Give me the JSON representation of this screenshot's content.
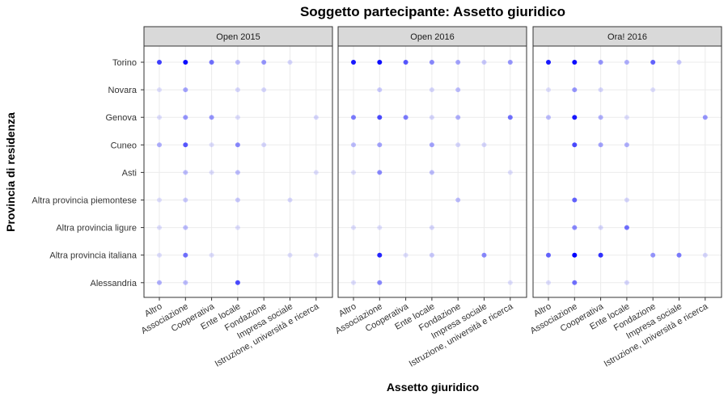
{
  "chart_data": {
    "type": "scatter",
    "title": "Soggetto partecipante: Assetto giuridico",
    "xlabel": "Assetto giuridico",
    "ylabel": "Provincia di residenza",
    "x_categories": [
      "Altro",
      "Associazione",
      "Cooperativa",
      "Ente locale",
      "Fondazione",
      "Impresa sociale",
      "Istruzione, università e ricerca"
    ],
    "y_categories": [
      "Torino",
      "Novara",
      "Genova",
      "Cuneo",
      "Asti",
      "Altra provincia piemontese",
      "Altra provincia ligure",
      "Altra provincia italiana",
      "Alessandria"
    ],
    "point_color": "#0000ff",
    "panels": [
      {
        "name": "Open 2015",
        "points": [
          {
            "x": "Altro",
            "y": "Torino",
            "alpha": 0.75
          },
          {
            "x": "Associazione",
            "y": "Torino",
            "alpha": 0.95
          },
          {
            "x": "Cooperativa",
            "y": "Torino",
            "alpha": 0.55
          },
          {
            "x": "Ente locale",
            "y": "Torino",
            "alpha": 0.25
          },
          {
            "x": "Fondazione",
            "y": "Torino",
            "alpha": 0.4
          },
          {
            "x": "Impresa sociale",
            "y": "Torino",
            "alpha": 0.15
          },
          {
            "x": "Altro",
            "y": "Novara",
            "alpha": 0.12
          },
          {
            "x": "Associazione",
            "y": "Novara",
            "alpha": 0.35
          },
          {
            "x": "Ente locale",
            "y": "Novara",
            "alpha": 0.15
          },
          {
            "x": "Fondazione",
            "y": "Novara",
            "alpha": 0.15
          },
          {
            "x": "Altro",
            "y": "Genova",
            "alpha": 0.12
          },
          {
            "x": "Associazione",
            "y": "Genova",
            "alpha": 0.4
          },
          {
            "x": "Cooperativa",
            "y": "Genova",
            "alpha": 0.4
          },
          {
            "x": "Ente locale",
            "y": "Genova",
            "alpha": 0.12
          },
          {
            "x": "Istruzione, università e ricerca",
            "y": "Genova",
            "alpha": 0.15
          },
          {
            "x": "Altro",
            "y": "Cuneo",
            "alpha": 0.3
          },
          {
            "x": "Associazione",
            "y": "Cuneo",
            "alpha": 0.65
          },
          {
            "x": "Cooperativa",
            "y": "Cuneo",
            "alpha": 0.12
          },
          {
            "x": "Ente locale",
            "y": "Cuneo",
            "alpha": 0.45
          },
          {
            "x": "Fondazione",
            "y": "Cuneo",
            "alpha": 0.15
          },
          {
            "x": "Associazione",
            "y": "Asti",
            "alpha": 0.25
          },
          {
            "x": "Cooperativa",
            "y": "Asti",
            "alpha": 0.12
          },
          {
            "x": "Ente locale",
            "y": "Asti",
            "alpha": 0.25
          },
          {
            "x": "Istruzione, università e ricerca",
            "y": "Asti",
            "alpha": 0.12
          },
          {
            "x": "Altro",
            "y": "Altra provincia piemontese",
            "alpha": 0.12
          },
          {
            "x": "Associazione",
            "y": "Altra provincia piemontese",
            "alpha": 0.2
          },
          {
            "x": "Ente locale",
            "y": "Altra provincia piemontese",
            "alpha": 0.2
          },
          {
            "x": "Impresa sociale",
            "y": "Altra provincia piemontese",
            "alpha": 0.15
          },
          {
            "x": "Altro",
            "y": "Altra provincia ligure",
            "alpha": 0.12
          },
          {
            "x": "Associazione",
            "y": "Altra provincia ligure",
            "alpha": 0.25
          },
          {
            "x": "Ente locale",
            "y": "Altra provincia ligure",
            "alpha": 0.12
          },
          {
            "x": "Altro",
            "y": "Altra provincia italiana",
            "alpha": 0.12
          },
          {
            "x": "Associazione",
            "y": "Altra provincia italiana",
            "alpha": 0.55
          },
          {
            "x": "Cooperativa",
            "y": "Altra provincia italiana",
            "alpha": 0.12
          },
          {
            "x": "Impresa sociale",
            "y": "Altra provincia italiana",
            "alpha": 0.12
          },
          {
            "x": "Istruzione, università e ricerca",
            "y": "Altra provincia italiana",
            "alpha": 0.12
          },
          {
            "x": "Altro",
            "y": "Alessandria",
            "alpha": 0.3
          },
          {
            "x": "Associazione",
            "y": "Alessandria",
            "alpha": 0.25
          },
          {
            "x": "Ente locale",
            "y": "Alessandria",
            "alpha": 0.7
          }
        ]
      },
      {
        "name": "Open 2016",
        "points": [
          {
            "x": "Altro",
            "y": "Torino",
            "alpha": 0.9
          },
          {
            "x": "Associazione",
            "y": "Torino",
            "alpha": 0.95
          },
          {
            "x": "Cooperativa",
            "y": "Torino",
            "alpha": 0.65
          },
          {
            "x": "Ente locale",
            "y": "Torino",
            "alpha": 0.45
          },
          {
            "x": "Fondazione",
            "y": "Torino",
            "alpha": 0.35
          },
          {
            "x": "Impresa sociale",
            "y": "Torino",
            "alpha": 0.2
          },
          {
            "x": "Istruzione, università e ricerca",
            "y": "Torino",
            "alpha": 0.4
          },
          {
            "x": "Associazione",
            "y": "Novara",
            "alpha": 0.2
          },
          {
            "x": "Ente locale",
            "y": "Novara",
            "alpha": 0.15
          },
          {
            "x": "Fondazione",
            "y": "Novara",
            "alpha": 0.25
          },
          {
            "x": "Altro",
            "y": "Genova",
            "alpha": 0.5
          },
          {
            "x": "Associazione",
            "y": "Genova",
            "alpha": 0.7
          },
          {
            "x": "Cooperativa",
            "y": "Genova",
            "alpha": 0.5
          },
          {
            "x": "Ente locale",
            "y": "Genova",
            "alpha": 0.15
          },
          {
            "x": "Fondazione",
            "y": "Genova",
            "alpha": 0.3
          },
          {
            "x": "Istruzione, università e ricerca",
            "y": "Genova",
            "alpha": 0.55
          },
          {
            "x": "Altro",
            "y": "Cuneo",
            "alpha": 0.25
          },
          {
            "x": "Associazione",
            "y": "Cuneo",
            "alpha": 0.35
          },
          {
            "x": "Ente locale",
            "y": "Cuneo",
            "alpha": 0.35
          },
          {
            "x": "Fondazione",
            "y": "Cuneo",
            "alpha": 0.15
          },
          {
            "x": "Impresa sociale",
            "y": "Cuneo",
            "alpha": 0.15
          },
          {
            "x": "Altro",
            "y": "Asti",
            "alpha": 0.12
          },
          {
            "x": "Associazione",
            "y": "Asti",
            "alpha": 0.45
          },
          {
            "x": "Ente locale",
            "y": "Asti",
            "alpha": 0.25
          },
          {
            "x": "Istruzione, università e ricerca",
            "y": "Asti",
            "alpha": 0.12
          },
          {
            "x": "Fondazione",
            "y": "Altra provincia piemontese",
            "alpha": 0.25
          },
          {
            "x": "Altro",
            "y": "Altra provincia ligure",
            "alpha": 0.12
          },
          {
            "x": "Associazione",
            "y": "Altra provincia ligure",
            "alpha": 0.12
          },
          {
            "x": "Ente locale",
            "y": "Altra provincia ligure",
            "alpha": 0.15
          },
          {
            "x": "Associazione",
            "y": "Altra provincia italiana",
            "alpha": 0.85
          },
          {
            "x": "Cooperativa",
            "y": "Altra provincia italiana",
            "alpha": 0.12
          },
          {
            "x": "Ente locale",
            "y": "Altra provincia italiana",
            "alpha": 0.2
          },
          {
            "x": "Impresa sociale",
            "y": "Altra provincia italiana",
            "alpha": 0.45
          },
          {
            "x": "Altro",
            "y": "Alessandria",
            "alpha": 0.12
          },
          {
            "x": "Associazione",
            "y": "Alessandria",
            "alpha": 0.45
          },
          {
            "x": "Istruzione, università e ricerca",
            "y": "Alessandria",
            "alpha": 0.12
          }
        ]
      },
      {
        "name": "Ora! 2016",
        "points": [
          {
            "x": "Altro",
            "y": "Torino",
            "alpha": 0.9
          },
          {
            "x": "Associazione",
            "y": "Torino",
            "alpha": 0.95
          },
          {
            "x": "Cooperativa",
            "y": "Torino",
            "alpha": 0.4
          },
          {
            "x": "Ente locale",
            "y": "Torino",
            "alpha": 0.3
          },
          {
            "x": "Fondazione",
            "y": "Torino",
            "alpha": 0.6
          },
          {
            "x": "Impresa sociale",
            "y": "Torino",
            "alpha": 0.2
          },
          {
            "x": "Altro",
            "y": "Novara",
            "alpha": 0.12
          },
          {
            "x": "Associazione",
            "y": "Novara",
            "alpha": 0.4
          },
          {
            "x": "Cooperativa",
            "y": "Novara",
            "alpha": 0.15
          },
          {
            "x": "Fondazione",
            "y": "Novara",
            "alpha": 0.12
          },
          {
            "x": "Altro",
            "y": "Genova",
            "alpha": 0.25
          },
          {
            "x": "Associazione",
            "y": "Genova",
            "alpha": 0.9
          },
          {
            "x": "Cooperativa",
            "y": "Genova",
            "alpha": 0.3
          },
          {
            "x": "Ente locale",
            "y": "Genova",
            "alpha": 0.12
          },
          {
            "x": "Istruzione, università e ricerca",
            "y": "Genova",
            "alpha": 0.4
          },
          {
            "x": "Associazione",
            "y": "Cuneo",
            "alpha": 0.7
          },
          {
            "x": "Cooperativa",
            "y": "Cuneo",
            "alpha": 0.35
          },
          {
            "x": "Ente locale",
            "y": "Cuneo",
            "alpha": 0.3
          },
          {
            "x": "Associazione",
            "y": "Altra provincia piemontese",
            "alpha": 0.6
          },
          {
            "x": "Ente locale",
            "y": "Altra provincia piemontese",
            "alpha": 0.15
          },
          {
            "x": "Associazione",
            "y": "Altra provincia ligure",
            "alpha": 0.45
          },
          {
            "x": "Cooperativa",
            "y": "Altra provincia ligure",
            "alpha": 0.15
          },
          {
            "x": "Ente locale",
            "y": "Altra provincia ligure",
            "alpha": 0.55
          },
          {
            "x": "Altro",
            "y": "Altra provincia italiana",
            "alpha": 0.6
          },
          {
            "x": "Associazione",
            "y": "Altra provincia italiana",
            "alpha": 1.0
          },
          {
            "x": "Cooperativa",
            "y": "Altra provincia italiana",
            "alpha": 0.8
          },
          {
            "x": "Fondazione",
            "y": "Altra provincia italiana",
            "alpha": 0.4
          },
          {
            "x": "Impresa sociale",
            "y": "Altra provincia italiana",
            "alpha": 0.5
          },
          {
            "x": "Istruzione, università e ricerca",
            "y": "Altra provincia italiana",
            "alpha": 0.15
          },
          {
            "x": "Altro",
            "y": "Alessandria",
            "alpha": 0.12
          },
          {
            "x": "Associazione",
            "y": "Alessandria",
            "alpha": 0.55
          },
          {
            "x": "Ente locale",
            "y": "Alessandria",
            "alpha": 0.15
          }
        ]
      }
    ],
    "grid": true,
    "legend": "none"
  }
}
